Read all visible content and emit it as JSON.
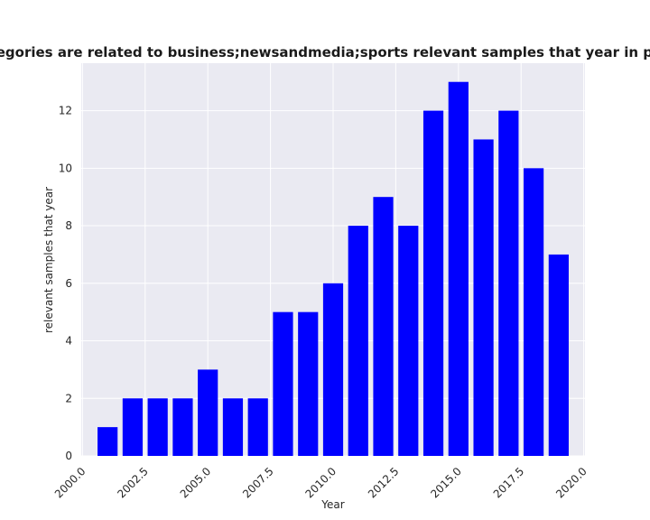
{
  "chart_data": {
    "type": "bar",
    "title": "How many categories are related to business;newsandmedia;sports relevant samples that year in privacy policies",
    "xlabel": "Year",
    "ylabel": "relevant samples that year",
    "x": [
      2001,
      2002,
      2003,
      2004,
      2005,
      2006,
      2007,
      2008,
      2009,
      2010,
      2011,
      2012,
      2013,
      2014,
      2015,
      2016,
      2017,
      2018,
      2019
    ],
    "values": [
      1,
      2,
      2,
      2,
      3,
      2,
      2,
      5,
      5,
      6,
      8,
      9,
      8,
      12,
      13,
      11,
      12,
      10,
      7
    ],
    "xlim": [
      1999.95,
      2020.05
    ],
    "ylim": [
      0,
      13.65
    ],
    "xticks": [
      2000.0,
      2002.5,
      2005.0,
      2007.5,
      2010.0,
      2012.5,
      2015.0,
      2017.5,
      2020.0
    ],
    "xtick_labels": [
      "2000.0",
      "2002.5",
      "2005.0",
      "2007.5",
      "2010.0",
      "2012.5",
      "2015.0",
      "2017.5",
      "2020.0"
    ],
    "yticks": [
      0,
      2,
      4,
      6,
      8,
      10,
      12
    ],
    "ytick_labels": [
      "0",
      "2",
      "4",
      "6",
      "8",
      "10",
      "12"
    ],
    "bar_width": 0.8,
    "bar_color": "#0000ff",
    "background_color": "#eaeaf2",
    "grid": true
  }
}
